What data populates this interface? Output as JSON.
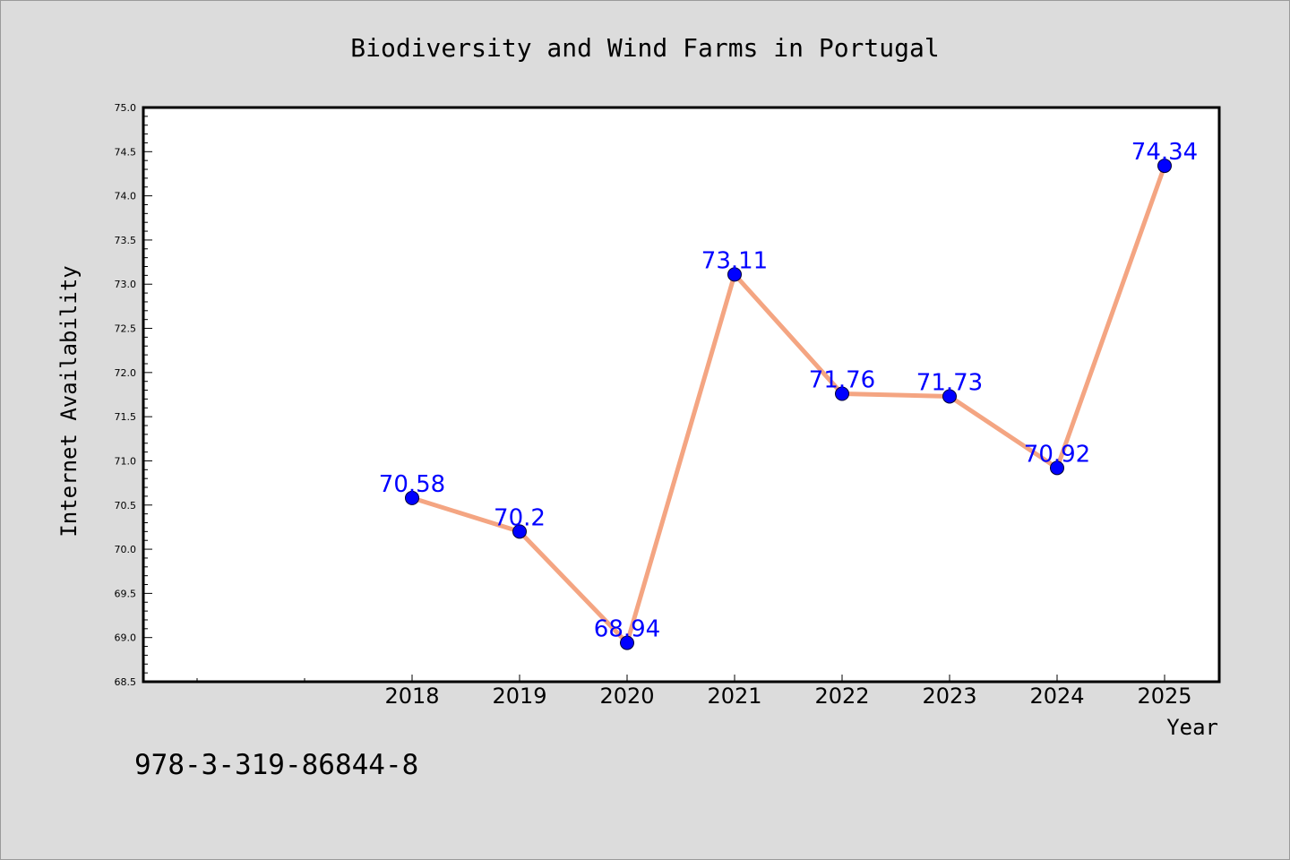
{
  "chart_data": {
    "type": "line",
    "title": "Biodiversity and Wind Farms in Portugal",
    "xlabel": "Year",
    "ylabel": "Internet Availability",
    "categories": [
      "2018",
      "2019",
      "2020",
      "2021",
      "2022",
      "2023",
      "2024",
      "2025"
    ],
    "series": [
      {
        "values": [
          70.58,
          70.2,
          68.94,
          73.11,
          71.76,
          71.73,
          70.92,
          74.34
        ]
      }
    ],
    "data_labels": [
      "70.58",
      "70.2",
      "68.94",
      "73.11",
      "71.76",
      "71.73",
      "70.92",
      "74.34"
    ],
    "ylim": [
      68.5,
      75.0
    ],
    "yticks": [
      "68.5",
      "69.0",
      "69.5",
      "70.0",
      "70.5",
      "71.0",
      "71.5",
      "72.0",
      "72.5",
      "73.0",
      "73.5",
      "74.0",
      "74.5",
      "75.0"
    ],
    "grid": false,
    "line_color": "#f4a582",
    "marker_color": "#0000ff",
    "label_color": "#0000ff"
  },
  "footer_text": "978-3-319-86844-8"
}
